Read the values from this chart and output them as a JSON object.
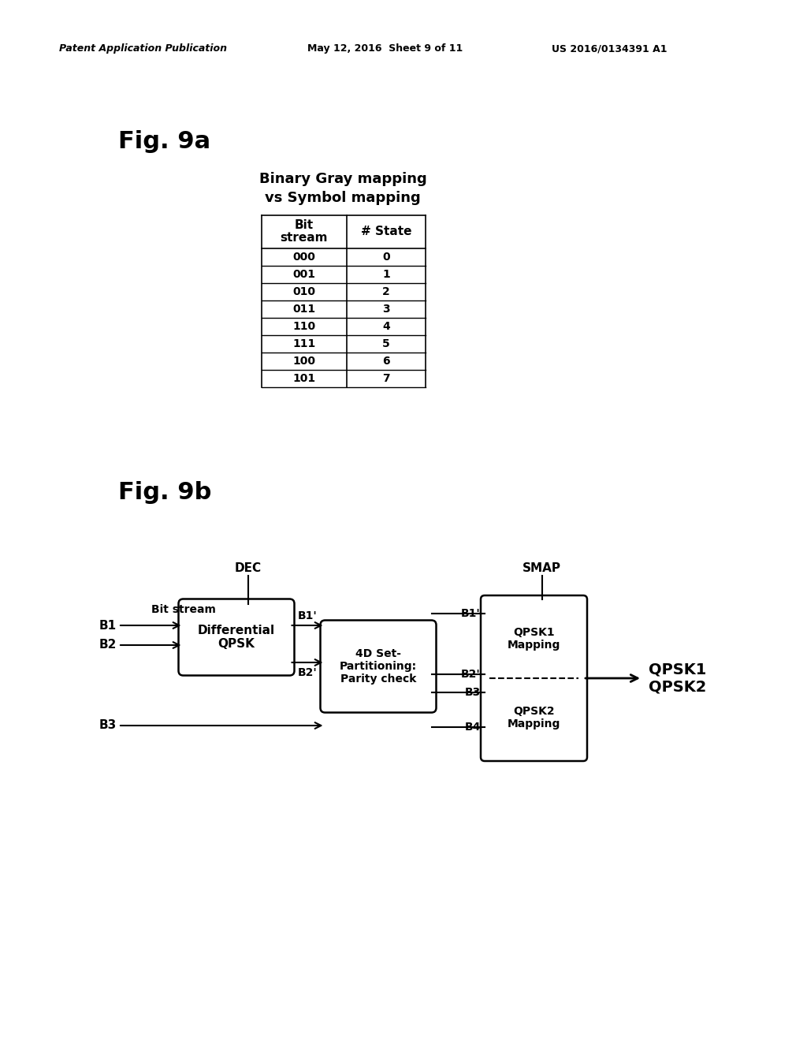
{
  "bg_color": "#ffffff",
  "header_left": "Patent Application Publication",
  "header_center": "May 12, 2016  Sheet 9 of 11",
  "header_right": "US 2016/0134391 A1",
  "fig9a_label": "Fig. 9a",
  "table_title_line1": "Binary Gray mapping",
  "table_title_line2": "vs Symbol mapping",
  "table_data": [
    [
      "000",
      "0"
    ],
    [
      "001",
      "1"
    ],
    [
      "010",
      "2"
    ],
    [
      "011",
      "3"
    ],
    [
      "110",
      "4"
    ],
    [
      "111",
      "5"
    ],
    [
      "100",
      "6"
    ],
    [
      "101",
      "7"
    ]
  ],
  "fig9b_label": "Fig. 9b",
  "dec_label": "DEC",
  "smap_label": "SMAP",
  "bit_stream_label": "Bit stream",
  "b1_label": "B1",
  "b2_label": "B2",
  "b3_label": "B3",
  "box1_text": "Differential\nQPSK",
  "box2_text": "4D Set-\nPartitioning:\nParity check",
  "box3_text": "QPSK1\nMapping",
  "box4_text": "QPSK2\nMapping",
  "b1prime_out": "B1'",
  "b2prime_out": "B2'",
  "b1prime_in": "B1'",
  "b2prime_in": "B2'",
  "b3_in": "B3",
  "b4_in": "B4",
  "output_label": "QPSK1\nQPSK2"
}
